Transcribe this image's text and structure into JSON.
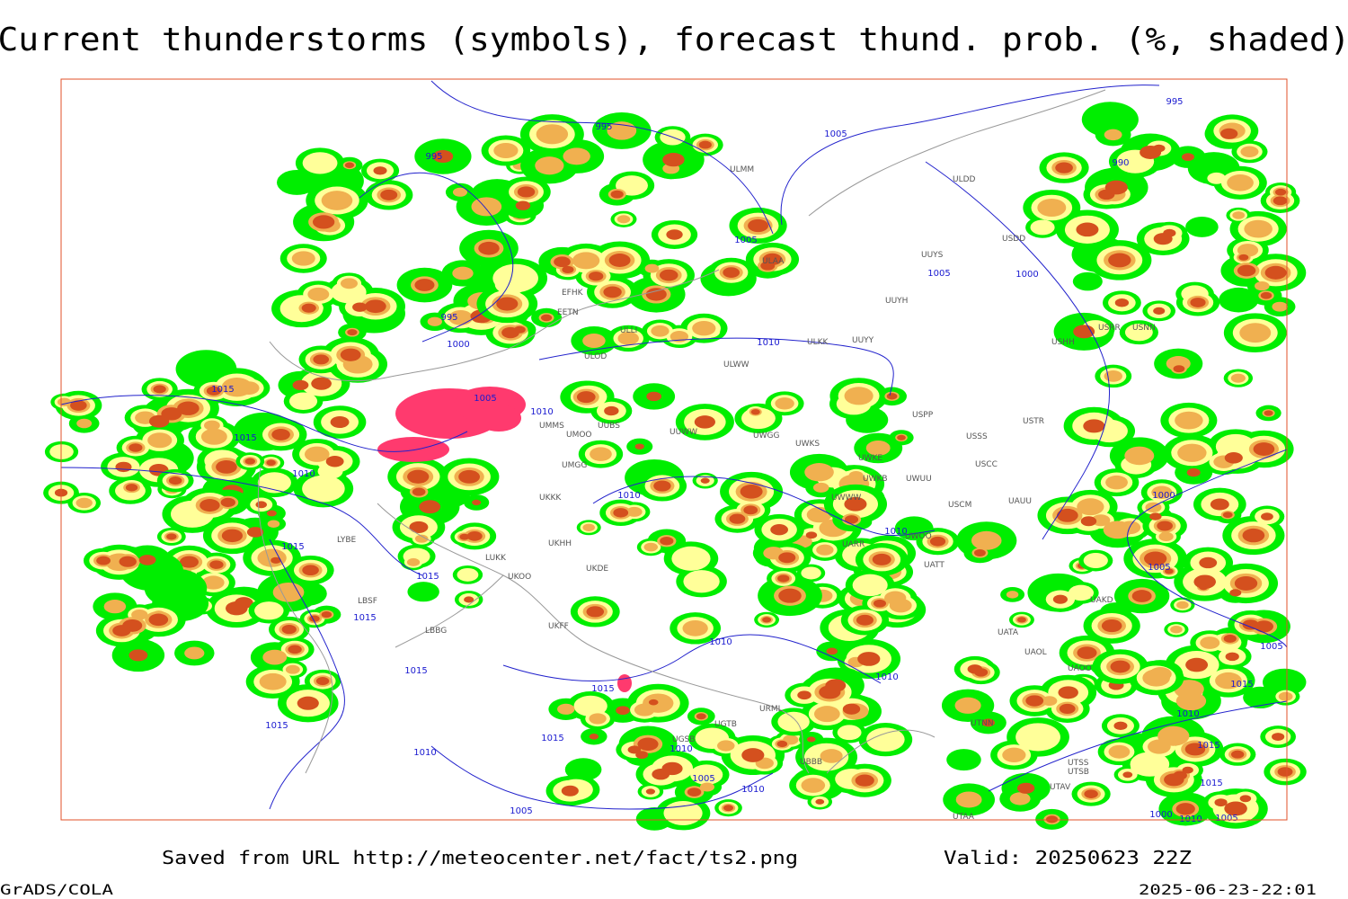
{
  "title": "Current thunderstorms (symbols), forecast thund. prob. (%, shaded)",
  "footer": {
    "source": "Saved from URL http://meteocenter.net/fact/ts2.png",
    "valid": "Valid: 20250623 22Z",
    "software": "GrADS/COLA",
    "timestamp": "2025-06-23-22:01"
  },
  "isobar_labels": [
    995,
    995,
    995,
    1000,
    1005,
    1005,
    1005,
    1000,
    995,
    990,
    1015,
    1015,
    1010,
    1005,
    1010,
    1010,
    1010,
    1010,
    1015,
    1015,
    1015,
    1015,
    1015,
    1010,
    1010,
    1015,
    1015,
    1010,
    1010,
    1005,
    1010,
    1005,
    1000,
    1005,
    1005,
    1015,
    1010,
    1015,
    1015,
    1000,
    1010,
    1005
  ],
  "stations": [
    "ULMM",
    "ULAA",
    "EFHK",
    "EETN",
    "ULLI",
    "ULOD",
    "ULKK",
    "UUYY",
    "ULWW",
    "UUYS",
    "UUYH",
    "USDD",
    "ULDD",
    "USHH",
    "UMMS",
    "UMOO",
    "UUBS",
    "UUWW",
    "UWGG",
    "UWKS",
    "USSS",
    "USTR",
    "USPP",
    "UWKE",
    "UWKB",
    "UWUU",
    "USCC",
    "UMGG",
    "UKKK",
    "UWWW",
    "USCM",
    "UAUU",
    "UWOO",
    "UATT",
    "UARR",
    "LUKK",
    "UKOO",
    "UKHH",
    "UKDE",
    "UKFF",
    "UATA",
    "UAOL",
    "UAOO",
    "UAKD",
    "UTNN",
    "UTSS",
    "UTSB",
    "UTAV",
    "UTAA",
    "UBBB",
    "URML",
    "UGTB",
    "UGSB",
    "LYBE",
    "LBSF",
    "LBBG",
    "USRR",
    "USNN"
  ]
}
